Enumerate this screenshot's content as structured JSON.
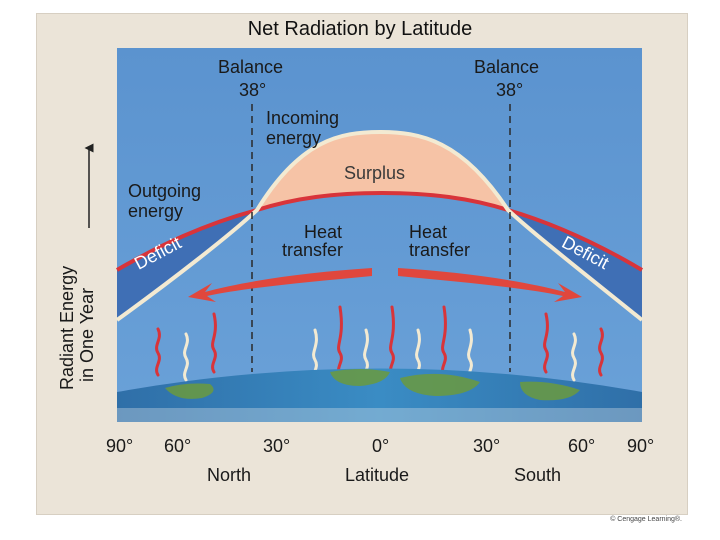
{
  "title": "Net Radiation by Latitude",
  "y_axis_label_line1": "Radiant Energy",
  "y_axis_label_line2": "in One Year",
  "balance_label": "Balance",
  "balance_degree_left": "38°",
  "balance_degree_right": "38°",
  "incoming_label_line1": "Incoming",
  "incoming_label_line2": "energy",
  "outgoing_label_line1": "Outgoing",
  "outgoing_label_line2": "energy",
  "surplus_label": "Surplus",
  "deficit_label": "Deficit",
  "heat_transfer_line1": "Heat",
  "heat_transfer_line2": "transfer",
  "latitude_ticks": [
    "90°",
    "60°",
    "30°",
    "0°",
    "30°",
    "60°",
    "90°"
  ],
  "axis_north": "North",
  "axis_latitude": "Latitude",
  "axis_south": "South",
  "credit": "© Cengage Learning®.",
  "colors": {
    "sky": "#5b93cf",
    "surplus": "#f6c3a6",
    "deficit": "#3f6fb5",
    "outgoing_curve": "#d8343a",
    "incoming_curve": "#f3ead2",
    "heat_arrow": "#e0473d",
    "panel": "#ebe4d8"
  }
}
